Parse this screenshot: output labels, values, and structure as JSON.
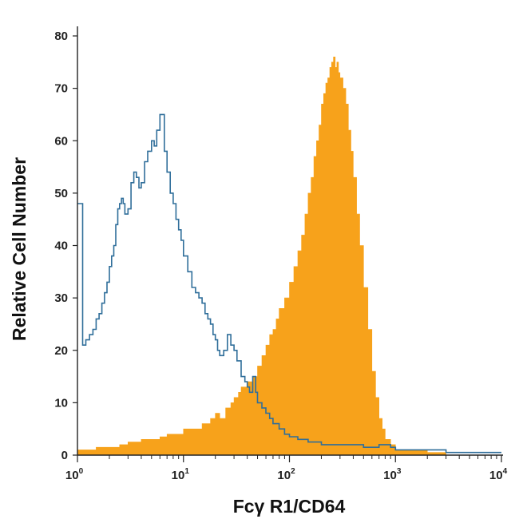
{
  "chart_data": {
    "type": "area",
    "title": "",
    "xlabel": "Fcγ R1/CD64",
    "ylabel": "Relative Cell Number",
    "x_scale": "log",
    "xlim": [
      1,
      10000
    ],
    "ylim": [
      0,
      80
    ],
    "grid": false,
    "x_ticks": [
      {
        "value": 1,
        "base": "10",
        "exp": "0"
      },
      {
        "value": 10,
        "base": "10",
        "exp": "1"
      },
      {
        "value": 100,
        "base": "10",
        "exp": "2"
      },
      {
        "value": 1000,
        "base": "10",
        "exp": "3"
      },
      {
        "value": 10000,
        "base": "10",
        "exp": "4"
      }
    ],
    "y_ticks": [
      0,
      10,
      20,
      30,
      40,
      50,
      60,
      70,
      80
    ],
    "series": [
      {
        "kind": "filled",
        "color": "#f7a21b",
        "points": [
          [
            1.0,
            1
          ],
          [
            1.2,
            1
          ],
          [
            1.5,
            1.5
          ],
          [
            2.0,
            1.5
          ],
          [
            2.5,
            2
          ],
          [
            3.0,
            2.5
          ],
          [
            4.0,
            3
          ],
          [
            5.0,
            3
          ],
          [
            6.0,
            3.5
          ],
          [
            7.0,
            4
          ],
          [
            8.0,
            4
          ],
          [
            10,
            5
          ],
          [
            12,
            5
          ],
          [
            15,
            6
          ],
          [
            18,
            7
          ],
          [
            20,
            8
          ],
          [
            22,
            7
          ],
          [
            25,
            9
          ],
          [
            28,
            10
          ],
          [
            30,
            11
          ],
          [
            33,
            12
          ],
          [
            35,
            13
          ],
          [
            38,
            13
          ],
          [
            40,
            14
          ],
          [
            45,
            15
          ],
          [
            50,
            17
          ],
          [
            55,
            19
          ],
          [
            60,
            21
          ],
          [
            65,
            23
          ],
          [
            70,
            24
          ],
          [
            75,
            26
          ],
          [
            80,
            28
          ],
          [
            90,
            30
          ],
          [
            100,
            33
          ],
          [
            110,
            36
          ],
          [
            120,
            39
          ],
          [
            130,
            42
          ],
          [
            140,
            46
          ],
          [
            150,
            50
          ],
          [
            160,
            53
          ],
          [
            170,
            57
          ],
          [
            180,
            60
          ],
          [
            190,
            63
          ],
          [
            200,
            67
          ],
          [
            210,
            69
          ],
          [
            220,
            71
          ],
          [
            230,
            72
          ],
          [
            240,
            74
          ],
          [
            250,
            75
          ],
          [
            260,
            76
          ],
          [
            270,
            74
          ],
          [
            280,
            75
          ],
          [
            290,
            73
          ],
          [
            300,
            72
          ],
          [
            320,
            70
          ],
          [
            340,
            67
          ],
          [
            360,
            62
          ],
          [
            380,
            58
          ],
          [
            400,
            53
          ],
          [
            430,
            46
          ],
          [
            460,
            40
          ],
          [
            500,
            32
          ],
          [
            550,
            24
          ],
          [
            600,
            16
          ],
          [
            650,
            11
          ],
          [
            700,
            7
          ],
          [
            750,
            5
          ],
          [
            800,
            3
          ],
          [
            900,
            2
          ],
          [
            1000,
            1
          ],
          [
            1200,
            1
          ],
          [
            1500,
            1
          ],
          [
            2000,
            0.5
          ],
          [
            3000,
            0
          ],
          [
            10000,
            0
          ]
        ]
      },
      {
        "kind": "outline",
        "color": "#2f6e9a",
        "points": [
          [
            1.0,
            48
          ],
          [
            1.1,
            48
          ],
          [
            1.12,
            21
          ],
          [
            1.2,
            22
          ],
          [
            1.3,
            23
          ],
          [
            1.4,
            24
          ],
          [
            1.5,
            26
          ],
          [
            1.6,
            27
          ],
          [
            1.7,
            29
          ],
          [
            1.8,
            31
          ],
          [
            1.9,
            33
          ],
          [
            2.0,
            36
          ],
          [
            2.1,
            38
          ],
          [
            2.2,
            40
          ],
          [
            2.3,
            44
          ],
          [
            2.4,
            47
          ],
          [
            2.5,
            48
          ],
          [
            2.6,
            49
          ],
          [
            2.7,
            48
          ],
          [
            2.8,
            46
          ],
          [
            3.0,
            47
          ],
          [
            3.2,
            52
          ],
          [
            3.4,
            54
          ],
          [
            3.6,
            53
          ],
          [
            3.8,
            51
          ],
          [
            4.0,
            52
          ],
          [
            4.3,
            56
          ],
          [
            4.6,
            58
          ],
          [
            5.0,
            60
          ],
          [
            5.3,
            59
          ],
          [
            5.6,
            62
          ],
          [
            6.0,
            65
          ],
          [
            6.3,
            65
          ],
          [
            6.6,
            58
          ],
          [
            7.0,
            54
          ],
          [
            7.5,
            50
          ],
          [
            8.0,
            48
          ],
          [
            8.5,
            45
          ],
          [
            9.0,
            43
          ],
          [
            9.5,
            41
          ],
          [
            10,
            38
          ],
          [
            11,
            35
          ],
          [
            12,
            32
          ],
          [
            13,
            31
          ],
          [
            14,
            30
          ],
          [
            15,
            29
          ],
          [
            16,
            27
          ],
          [
            17,
            26
          ],
          [
            18,
            25
          ],
          [
            19,
            23
          ],
          [
            20,
            22
          ],
          [
            21,
            20
          ],
          [
            22,
            19
          ],
          [
            24,
            20
          ],
          [
            26,
            23
          ],
          [
            28,
            21
          ],
          [
            30,
            20
          ],
          [
            32,
            18
          ],
          [
            35,
            15
          ],
          [
            38,
            14
          ],
          [
            40,
            13
          ],
          [
            42,
            12
          ],
          [
            45,
            15
          ],
          [
            48,
            12
          ],
          [
            50,
            10
          ],
          [
            55,
            9
          ],
          [
            60,
            8
          ],
          [
            65,
            7
          ],
          [
            70,
            6
          ],
          [
            80,
            5
          ],
          [
            90,
            4
          ],
          [
            100,
            3.5
          ],
          [
            120,
            3
          ],
          [
            150,
            2.5
          ],
          [
            200,
            2
          ],
          [
            300,
            2
          ],
          [
            500,
            1.5
          ],
          [
            700,
            2
          ],
          [
            900,
            1.5
          ],
          [
            1000,
            1
          ],
          [
            1500,
            1
          ],
          [
            2000,
            1
          ],
          [
            3000,
            0.5
          ],
          [
            10000,
            0.5
          ]
        ]
      }
    ]
  }
}
